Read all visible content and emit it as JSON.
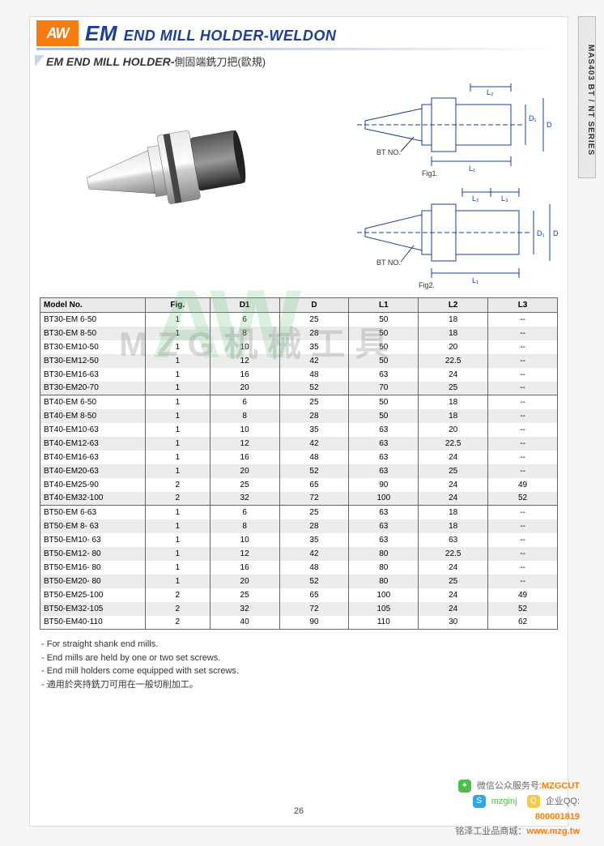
{
  "sideTab": "MAS403 BT / NT SERIES",
  "logo": "AW",
  "titlePrefix": "EM",
  "titleMain": "END MILL HOLDER-WELDON",
  "subtitleEn": "EM END MILL HOLDER-",
  "subtitleCn": "側固端銑刀把(歐規)",
  "diagramLabels": {
    "btno": "BT NO.",
    "fig1": "Fig1.",
    "fig2": "Fig2.",
    "L1": "L₁",
    "L2": "L₂",
    "L3": "L₃",
    "D": "D",
    "D1": "D₁"
  },
  "watermarkLogo": "AW",
  "watermarkText": "MZG机械工具",
  "table": {
    "columns": [
      "Model No.",
      "Fig.",
      "D1",
      "D",
      "L1",
      "L2",
      "L3"
    ],
    "groups": [
      [
        [
          "BT30-EM 6-50",
          "1",
          "6",
          "25",
          "50",
          "18",
          "--"
        ],
        [
          "BT30-EM 8-50",
          "1",
          "8",
          "28",
          "50",
          "18",
          "--"
        ],
        [
          "BT30-EM10-50",
          "1",
          "10",
          "35",
          "50",
          "20",
          "--"
        ],
        [
          "BT30-EM12-50",
          "1",
          "12",
          "42",
          "50",
          "22.5",
          "--"
        ],
        [
          "BT30-EM16-63",
          "1",
          "16",
          "48",
          "63",
          "24",
          "--"
        ],
        [
          "BT30-EM20-70",
          "1",
          "20",
          "52",
          "70",
          "25",
          "--"
        ]
      ],
      [
        [
          "BT40-EM 6-50",
          "1",
          "6",
          "25",
          "50",
          "18",
          "--"
        ],
        [
          "BT40-EM 8-50",
          "1",
          "8",
          "28",
          "50",
          "18",
          "--"
        ],
        [
          "BT40-EM10-63",
          "1",
          "10",
          "35",
          "63",
          "20",
          "--"
        ],
        [
          "BT40-EM12-63",
          "1",
          "12",
          "42",
          "63",
          "22.5",
          "--"
        ],
        [
          "BT40-EM16-63",
          "1",
          "16",
          "48",
          "63",
          "24",
          "--"
        ],
        [
          "BT40-EM20-63",
          "1",
          "20",
          "52",
          "63",
          "25",
          "--"
        ],
        [
          "BT40-EM25-90",
          "2",
          "25",
          "65",
          "90",
          "24",
          "49"
        ],
        [
          "BT40-EM32-100",
          "2",
          "32",
          "72",
          "100",
          "24",
          "52"
        ]
      ],
      [
        [
          "BT50-EM 6-63",
          "1",
          "6",
          "25",
          "63",
          "18",
          "--"
        ],
        [
          "BT50-EM 8- 63",
          "1",
          "8",
          "28",
          "63",
          "18",
          "--"
        ],
        [
          "BT50-EM10- 63",
          "1",
          "10",
          "35",
          "63",
          "63",
          "--"
        ],
        [
          "BT50-EM12- 80",
          "1",
          "12",
          "42",
          "80",
          "22.5",
          "--"
        ],
        [
          "BT50-EM16- 80",
          "1",
          "16",
          "48",
          "80",
          "24",
          "--"
        ],
        [
          "BT50-EM20- 80",
          "1",
          "20",
          "52",
          "80",
          "25",
          "--"
        ],
        [
          "BT50-EM25-100",
          "2",
          "25",
          "65",
          "100",
          "24",
          "49"
        ],
        [
          "BT50-EM32-105",
          "2",
          "32",
          "72",
          "105",
          "24",
          "52"
        ],
        [
          "BT50-EM40-110",
          "2",
          "40",
          "90",
          "110",
          "30",
          "62"
        ]
      ]
    ]
  },
  "notes": [
    "- For straight shank end mills.",
    "- End mills are held by one or two set screws.",
    "- End mill holders come equipped with set screws.",
    "- 適用於夾持銑刀可用在一般切削加工。"
  ],
  "pageNumber": "26",
  "footer": {
    "wechatLabel": "微信公众服务号:",
    "wechatId": "MZGCUT",
    "skypeLabel": "mzginj",
    "qqLabel": "企业QQ:",
    "qqId": "800001819",
    "shopLabel": "铭泽工业品商城：",
    "shopUrl": "www.mzg.tw"
  }
}
